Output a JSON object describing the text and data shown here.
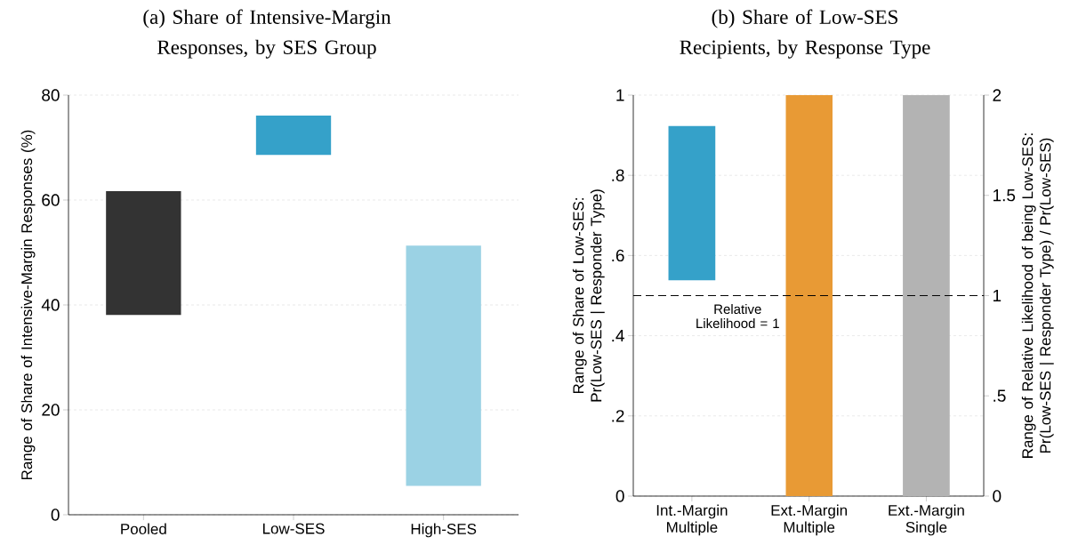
{
  "chart_data": [
    {
      "type": "bar",
      "title": "(a) Share of Intensive-Margin Responses, by SES Group",
      "ylabel": "Range of Share of Intensive-Margin Responses (%)",
      "categories": [
        "Pooled",
        "Low-SES",
        "High-SES"
      ],
      "values": [
        23.6,
        7.5,
        45.8
      ],
      "base": [
        38.1,
        68.6,
        5.5
      ],
      "colors": [
        "#333333",
        "#35a1c9",
        "#9bd2e4"
      ],
      "ylim": [
        0,
        80
      ],
      "yticks": [
        0,
        20,
        40,
        60,
        80
      ],
      "grid": "y"
    },
    {
      "type": "bar",
      "title": "(b) Share of Low-SES Recipients, by Response Type",
      "ylabel": "Range of Share of Low-SES: Pr(Low-SES | Responder Type)",
      "y2label": "Range of Relative Likelihood of being Low-SES: Pr(Low-SES | Responder Type) / Pr(Low-SES)",
      "categories": [
        "Int.-Margin Multiple",
        "Ext.-Margin Multiple",
        "Ext.-Margin Single"
      ],
      "values": [
        0.385,
        1,
        1
      ],
      "base": [
        0.538,
        0,
        0
      ],
      "colors": [
        "#35a1c9",
        "#e89a35",
        "#b3b3b3"
      ],
      "ylim": [
        0,
        1
      ],
      "yticks": [
        0,
        {
          "value": 0.2,
          "label": ".2"
        },
        {
          "value": 0.4,
          "label": ".4"
        },
        {
          "value": 0.6,
          "label": ".6"
        },
        {
          "value": 0.8,
          "label": ".8"
        },
        1
      ],
      "y2lim": [
        0,
        2
      ],
      "y2ticks": [
        0,
        {
          "value": 0.5,
          "label": ".5"
        },
        1,
        1.5,
        2
      ],
      "ref_lines": [
        {
          "axis": "y",
          "value": 0.5,
          "label": "Relative Likelihood = 1",
          "color": "#000000",
          "line_style": "dashed"
        }
      ],
      "grid": "y"
    }
  ]
}
